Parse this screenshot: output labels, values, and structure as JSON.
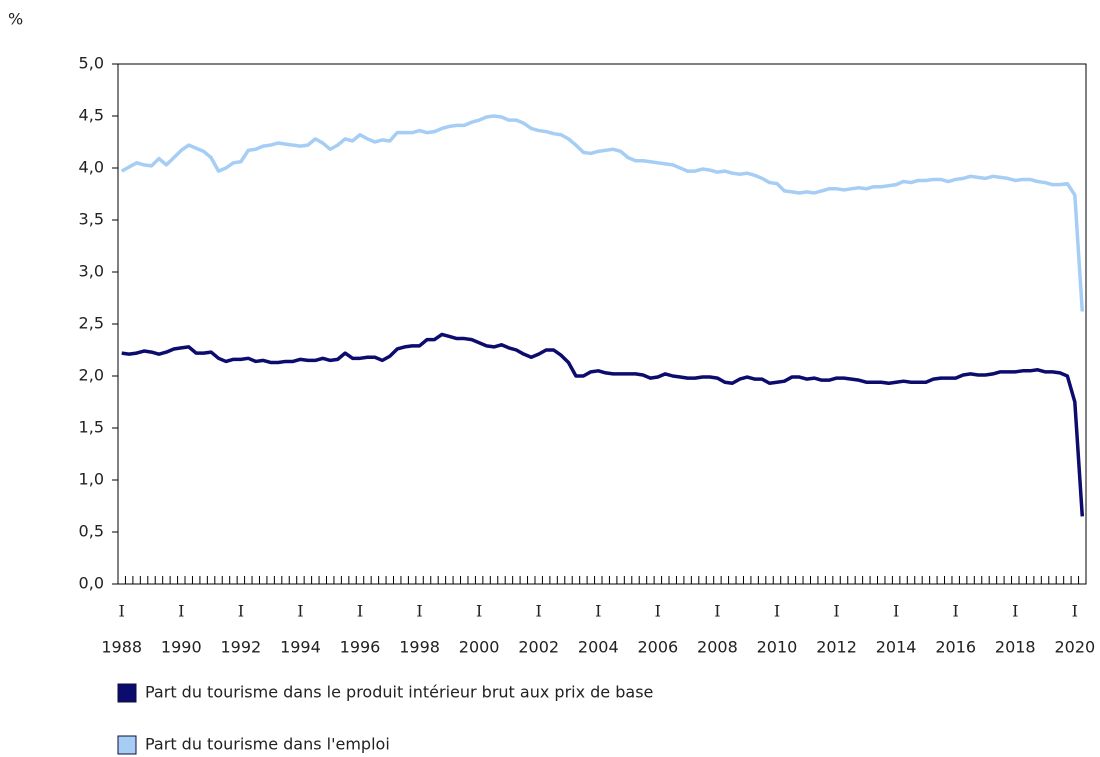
{
  "chart_data": {
    "type": "line",
    "y_label": "%",
    "categories": [
      [
        "I",
        "1988"
      ],
      null,
      null,
      null,
      null,
      null,
      null,
      null,
      [
        "I",
        "1990"
      ],
      null,
      null,
      null,
      null,
      null,
      null,
      null,
      [
        "I",
        "1992"
      ],
      null,
      null,
      null,
      null,
      null,
      null,
      null,
      [
        "I",
        "1994"
      ],
      null,
      null,
      null,
      null,
      null,
      null,
      null,
      [
        "I",
        "1996"
      ],
      null,
      null,
      null,
      null,
      null,
      null,
      null,
      [
        "I",
        "1998"
      ],
      null,
      null,
      null,
      null,
      null,
      null,
      null,
      [
        "I",
        "2000"
      ],
      null,
      null,
      null,
      null,
      null,
      null,
      null,
      [
        "I",
        "2002"
      ],
      null,
      null,
      null,
      null,
      null,
      null,
      null,
      [
        "I",
        "2004"
      ],
      null,
      null,
      null,
      null,
      null,
      null,
      null,
      [
        "I",
        "2006"
      ],
      null,
      null,
      null,
      null,
      null,
      null,
      null,
      [
        "I",
        "2008"
      ],
      null,
      null,
      null,
      null,
      null,
      null,
      null,
      [
        "I",
        "2010"
      ],
      null,
      null,
      null,
      null,
      null,
      null,
      null,
      [
        "I",
        "2012"
      ],
      null,
      null,
      null,
      null,
      null,
      null,
      null,
      [
        "I",
        "2014"
      ],
      null,
      null,
      null,
      null,
      null,
      null,
      null,
      [
        "I",
        "2016"
      ],
      null,
      null,
      null,
      null,
      null,
      null,
      null,
      [
        "I",
        "2018"
      ],
      null,
      null,
      null,
      null,
      null,
      null,
      null,
      [
        "I",
        "2020"
      ],
      null
    ],
    "series": [
      {
        "name": "Part du tourisme dans le produit intérieur brut aux prix de base",
        "color": "#0c0c6e",
        "values": [
          2.22,
          2.21,
          2.22,
          2.24,
          2.23,
          2.21,
          2.23,
          2.26,
          2.27,
          2.28,
          2.22,
          2.22,
          2.23,
          2.17,
          2.14,
          2.16,
          2.16,
          2.17,
          2.14,
          2.15,
          2.13,
          2.13,
          2.14,
          2.14,
          2.16,
          2.15,
          2.15,
          2.17,
          2.15,
          2.16,
          2.22,
          2.17,
          2.17,
          2.18,
          2.18,
          2.15,
          2.19,
          2.26,
          2.28,
          2.29,
          2.29,
          2.35,
          2.35,
          2.4,
          2.38,
          2.36,
          2.36,
          2.35,
          2.32,
          2.29,
          2.28,
          2.3,
          2.27,
          2.25,
          2.21,
          2.18,
          2.21,
          2.25,
          2.25,
          2.2,
          2.13,
          2.0,
          2.0,
          2.04,
          2.05,
          2.03,
          2.02,
          2.02,
          2.02,
          2.02,
          2.01,
          1.98,
          1.99,
          2.02,
          2.0,
          1.99,
          1.98,
          1.98,
          1.99,
          1.99,
          1.98,
          1.94,
          1.93,
          1.97,
          1.99,
          1.97,
          1.97,
          1.93,
          1.94,
          1.95,
          1.99,
          1.99,
          1.97,
          1.98,
          1.96,
          1.96,
          1.98,
          1.98,
          1.97,
          1.96,
          1.94,
          1.94,
          1.94,
          1.93,
          1.94,
          1.95,
          1.94,
          1.94,
          1.94,
          1.97,
          1.98,
          1.98,
          1.98,
          2.01,
          2.02,
          2.01,
          2.01,
          2.02,
          2.04,
          2.04,
          2.04,
          2.05,
          2.05,
          2.06,
          2.04,
          2.04,
          2.03,
          2.0,
          1.75,
          0.65
        ]
      },
      {
        "name": "Part du tourisme dans l'emploi",
        "color": "#a6cef5",
        "values": [
          3.97,
          4.01,
          4.05,
          4.03,
          4.02,
          4.09,
          4.03,
          4.1,
          4.17,
          4.22,
          4.19,
          4.16,
          4.1,
          3.97,
          4.0,
          4.05,
          4.06,
          4.17,
          4.18,
          4.21,
          4.22,
          4.24,
          4.23,
          4.22,
          4.21,
          4.22,
          4.28,
          4.24,
          4.18,
          4.22,
          4.28,
          4.26,
          4.32,
          4.28,
          4.25,
          4.27,
          4.26,
          4.34,
          4.34,
          4.34,
          4.36,
          4.34,
          4.35,
          4.38,
          4.4,
          4.41,
          4.41,
          4.44,
          4.46,
          4.49,
          4.5,
          4.49,
          4.46,
          4.46,
          4.43,
          4.38,
          4.36,
          4.35,
          4.33,
          4.32,
          4.28,
          4.22,
          4.15,
          4.14,
          4.16,
          4.17,
          4.18,
          4.16,
          4.1,
          4.07,
          4.07,
          4.06,
          4.05,
          4.04,
          4.03,
          4.0,
          3.97,
          3.97,
          3.99,
          3.98,
          3.96,
          3.97,
          3.95,
          3.94,
          3.95,
          3.93,
          3.9,
          3.86,
          3.85,
          3.78,
          3.77,
          3.76,
          3.77,
          3.76,
          3.78,
          3.8,
          3.8,
          3.79,
          3.8,
          3.81,
          3.8,
          3.82,
          3.82,
          3.83,
          3.84,
          3.87,
          3.86,
          3.88,
          3.88,
          3.89,
          3.89,
          3.87,
          3.89,
          3.9,
          3.92,
          3.91,
          3.9,
          3.92,
          3.91,
          3.9,
          3.88,
          3.89,
          3.89,
          3.87,
          3.86,
          3.84,
          3.84,
          3.85,
          3.74,
          2.62
        ]
      }
    ],
    "ylim": [
      0,
      5
    ],
    "yticks": [
      {
        "value": 0,
        "label": "0,0"
      },
      {
        "value": 0.5,
        "label": "0,5"
      },
      {
        "value": 1,
        "label": "1,0"
      },
      {
        "value": 1.5,
        "label": "1,5"
      },
      {
        "value": 2,
        "label": "2,0"
      },
      {
        "value": 2.5,
        "label": "2,5"
      },
      {
        "value": 3,
        "label": "3,0"
      },
      {
        "value": 3.5,
        "label": "3,5"
      },
      {
        "value": 4,
        "label": "4,0"
      },
      {
        "value": 4.5,
        "label": "4,5"
      },
      {
        "value": 5,
        "label": "5,0"
      }
    ],
    "grid": false,
    "legend": "bottom"
  }
}
